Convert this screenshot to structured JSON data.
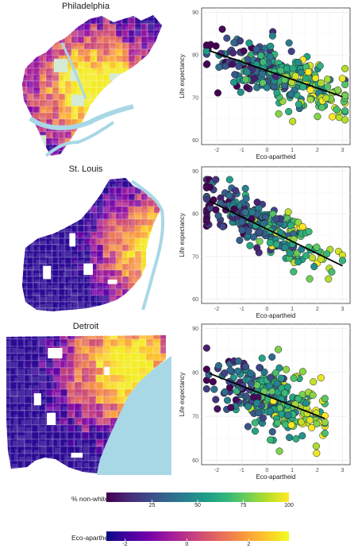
{
  "colors": {
    "viridis": [
      "#440154",
      "#482878",
      "#3e4989",
      "#31688e",
      "#26828e",
      "#1f9e89",
      "#35b779",
      "#6ece58",
      "#b5de2b",
      "#fde725"
    ],
    "plasma": [
      "#0d0887",
      "#46039f",
      "#7201a8",
      "#9c179e",
      "#bd3786",
      "#d8576b",
      "#ed7953",
      "#fb9f3a",
      "#fdca26",
      "#f0f921"
    ],
    "water": "#a8d8e6",
    "park": "#d5ead5",
    "regression_line": "#000000"
  },
  "panels": [
    {
      "city": "Philadelphia",
      "map_icon": "philadelphia-choropleth-map"
    },
    {
      "city": "St. Louis",
      "map_icon": "st-louis-choropleth-map"
    },
    {
      "city": "Detroit",
      "map_icon": "detroit-choropleth-map"
    }
  ],
  "chart_data": [
    {
      "type": "scatter",
      "city": "Philadelphia",
      "xlabel": "Eco-apartheid",
      "ylabel": "Life expectancy",
      "xlim": [
        -2.6,
        3.3
      ],
      "ylim": [
        59,
        91
      ],
      "xticks": [
        -2,
        -1,
        0,
        1,
        2,
        3
      ],
      "yticks": [
        60,
        70,
        80,
        90
      ],
      "grid": true,
      "point_color_variable": "% non-white",
      "trend_line": {
        "x": [
          -2.3,
          3.0
        ],
        "y": [
          81,
          70.2
        ]
      },
      "point_cloud": {
        "x_center": 0.4,
        "x_spread": 1.35,
        "x_min": -2.4,
        "x_max": 3.1,
        "slope": -2.05,
        "intercept": 76.3,
        "noise": 3.2,
        "count": 330
      }
    },
    {
      "type": "scatter",
      "city": "St. Louis",
      "xlabel": "Eco-apartheid",
      "ylabel": "Life expectancy",
      "xlim": [
        -2.6,
        3.3
      ],
      "ylim": [
        59,
        91
      ],
      "xticks": [
        -2,
        -1,
        0,
        1,
        2,
        3
      ],
      "yticks": [
        60,
        70,
        80,
        90
      ],
      "grid": true,
      "point_color_variable": "% non-white",
      "trend_line": {
        "x": [
          -2.3,
          3.0
        ],
        "y": [
          83,
          67.8
        ]
      },
      "point_cloud": {
        "x_center": -0.2,
        "x_spread": 1.3,
        "x_min": -2.4,
        "x_max": 3.0,
        "slope": -2.85,
        "intercept": 76.5,
        "noise": 2.9,
        "count": 300
      }
    },
    {
      "type": "scatter",
      "city": "Detroit",
      "xlabel": "Eco-apartheid",
      "ylabel": "Life expectancy",
      "xlim": [
        -2.6,
        3.3
      ],
      "ylim": [
        59,
        91
      ],
      "xticks": [
        -2,
        -1,
        0,
        1,
        2,
        3
      ],
      "yticks": [
        60,
        70,
        80,
        90
      ],
      "grid": true,
      "point_color_variable": "% non-white",
      "trend_line": {
        "x": [
          -2.3,
          2.3
        ],
        "y": [
          79.8,
          69.5
        ]
      },
      "point_cloud": {
        "x_center": 0.2,
        "x_spread": 1.1,
        "x_min": -2.4,
        "x_max": 2.3,
        "slope": -2.25,
        "intercept": 74.8,
        "noise": 3.6,
        "count": 320
      }
    }
  ],
  "legends": [
    {
      "title": "% non-white",
      "palette": "viridis",
      "ticks": [
        "25",
        "50",
        "75",
        "100"
      ],
      "tick_values": [
        25,
        50,
        75,
        100
      ],
      "range": [
        0,
        100
      ]
    },
    {
      "title": "Eco-apartheid",
      "palette": "plasma",
      "ticks": [
        "-2",
        "0",
        "2"
      ],
      "tick_values": [
        -2,
        0,
        2
      ],
      "range": [
        -2.6,
        3.3
      ]
    }
  ]
}
